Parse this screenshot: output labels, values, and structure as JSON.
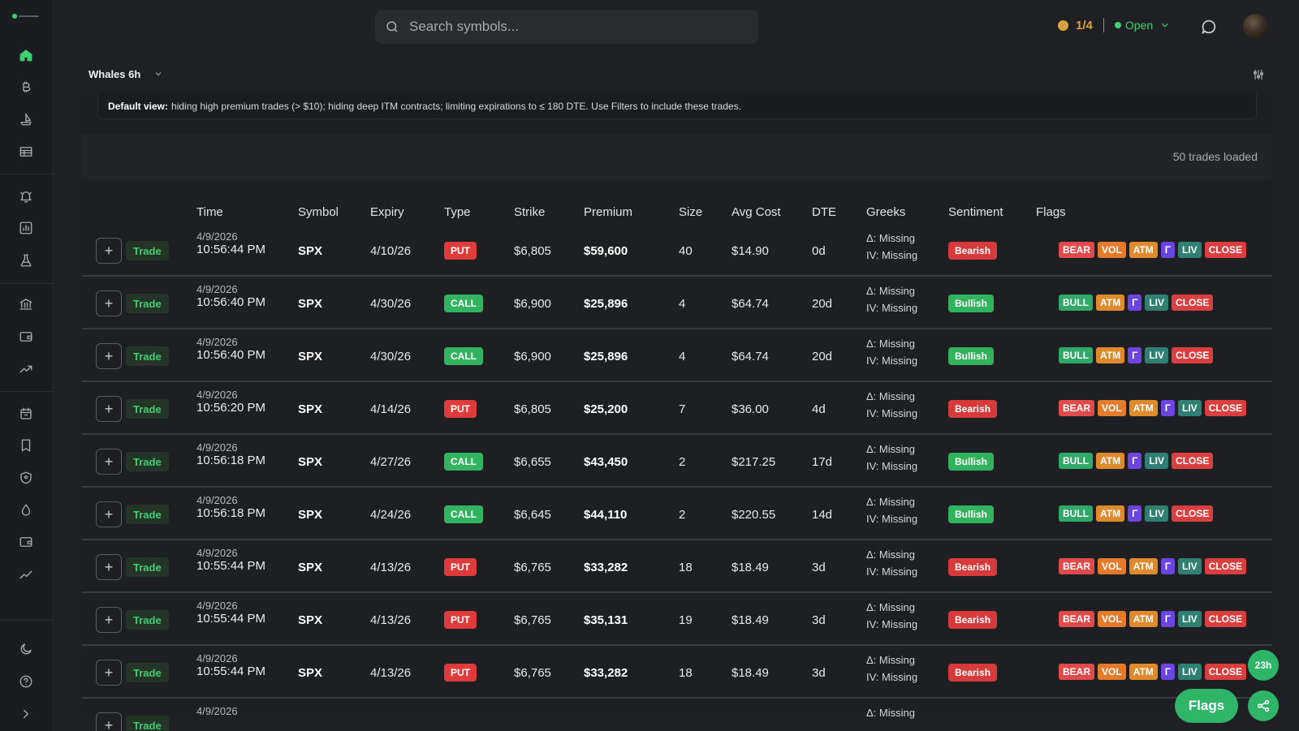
{
  "search": {
    "placeholder": "Search symbols..."
  },
  "market": {
    "count": "1/4",
    "status": "Open"
  },
  "view": {
    "selected": "Whales 6h"
  },
  "notice": {
    "label": "Default view:",
    "text": "hiding high premium trades (> $10); hiding deep ITM contracts; limiting expirations to ≤ 180 DTE. Use Filters to include these trades."
  },
  "loaded_text": "50 trades loaded",
  "columns": [
    "Time",
    "Symbol",
    "Expiry",
    "Type",
    "Strike",
    "Premium",
    "Size",
    "Avg Cost",
    "DTE",
    "Greeks",
    "Sentiment",
    "Flags"
  ],
  "trade_label": "Trade",
  "greeks_delta": "Δ: Missing",
  "greeks_iv": "IV: Missing",
  "rows": [
    {
      "date": "4/9/2026",
      "time": "10:56:44 PM",
      "symbol": "SPX",
      "expiry": "4/10/26",
      "type": "PUT",
      "strike": "$6,805",
      "premium": "$59,600",
      "size": "40",
      "avg_cost": "$14.90",
      "dte": "0d",
      "sentiment": "Bearish",
      "flags": [
        "BEAR",
        "VOL",
        "ATM",
        "Γ",
        "LIV",
        "CLOSE"
      ]
    },
    {
      "date": "4/9/2026",
      "time": "10:56:40 PM",
      "symbol": "SPX",
      "expiry": "4/30/26",
      "type": "CALL",
      "strike": "$6,900",
      "premium": "$25,896",
      "size": "4",
      "avg_cost": "$64.74",
      "dte": "20d",
      "sentiment": "Bullish",
      "flags": [
        "BULL",
        "ATM",
        "Γ",
        "LIV",
        "CLOSE"
      ]
    },
    {
      "date": "4/9/2026",
      "time": "10:56:40 PM",
      "symbol": "SPX",
      "expiry": "4/30/26",
      "type": "CALL",
      "strike": "$6,900",
      "premium": "$25,896",
      "size": "4",
      "avg_cost": "$64.74",
      "dte": "20d",
      "sentiment": "Bullish",
      "flags": [
        "BULL",
        "ATM",
        "Γ",
        "LIV",
        "CLOSE"
      ]
    },
    {
      "date": "4/9/2026",
      "time": "10:56:20 PM",
      "symbol": "SPX",
      "expiry": "4/14/26",
      "type": "PUT",
      "strike": "$6,805",
      "premium": "$25,200",
      "size": "7",
      "avg_cost": "$36.00",
      "dte": "4d",
      "sentiment": "Bearish",
      "flags": [
        "BEAR",
        "VOL",
        "ATM",
        "Γ",
        "LIV",
        "CLOSE"
      ]
    },
    {
      "date": "4/9/2026",
      "time": "10:56:18 PM",
      "symbol": "SPX",
      "expiry": "4/27/26",
      "type": "CALL",
      "strike": "$6,655",
      "premium": "$43,450",
      "size": "2",
      "avg_cost": "$217.25",
      "dte": "17d",
      "sentiment": "Bullish",
      "flags": [
        "BULL",
        "ATM",
        "Γ",
        "LIV",
        "CLOSE"
      ]
    },
    {
      "date": "4/9/2026",
      "time": "10:56:18 PM",
      "symbol": "SPX",
      "expiry": "4/24/26",
      "type": "CALL",
      "strike": "$6,645",
      "premium": "$44,110",
      "size": "2",
      "avg_cost": "$220.55",
      "dte": "14d",
      "sentiment": "Bullish",
      "flags": [
        "BULL",
        "ATM",
        "Γ",
        "LIV",
        "CLOSE"
      ]
    },
    {
      "date": "4/9/2026",
      "time": "10:55:44 PM",
      "symbol": "SPX",
      "expiry": "4/13/26",
      "type": "PUT",
      "strike": "$6,765",
      "premium": "$33,282",
      "size": "18",
      "avg_cost": "$18.49",
      "dte": "3d",
      "sentiment": "Bearish",
      "flags": [
        "BEAR",
        "VOL",
        "ATM",
        "Γ",
        "LIV",
        "CLOSE"
      ]
    },
    {
      "date": "4/9/2026",
      "time": "10:55:44 PM",
      "symbol": "SPX",
      "expiry": "4/13/26",
      "type": "PUT",
      "strike": "$6,765",
      "premium": "$35,131",
      "size": "19",
      "avg_cost": "$18.49",
      "dte": "3d",
      "sentiment": "Bearish",
      "flags": [
        "BEAR",
        "VOL",
        "ATM",
        "Γ",
        "LIV",
        "CLOSE"
      ]
    },
    {
      "date": "4/9/2026",
      "time": "10:55:44 PM",
      "symbol": "SPX",
      "expiry": "4/13/26",
      "type": "PUT",
      "strike": "$6,765",
      "premium": "$33,282",
      "size": "18",
      "avg_cost": "$18.49",
      "dte": "3d",
      "sentiment": "Bearish",
      "flags": [
        "BEAR",
        "VOL",
        "ATM",
        "Γ",
        "LIV",
        "CLOSE"
      ]
    },
    {
      "date": "4/9/2026",
      "time": "",
      "symbol": "",
      "expiry": "",
      "type": "",
      "strike": "",
      "premium": "",
      "size": "",
      "avg_cost": "",
      "dte": "",
      "sentiment": "",
      "flags": []
    }
  ],
  "fab": {
    "flags_label": "Flags",
    "timer": "23h"
  },
  "colors": {
    "accent": "#3ecf72",
    "bearish": "#d73a3a",
    "bullish": "#30b35c",
    "background": "#1f2023"
  }
}
